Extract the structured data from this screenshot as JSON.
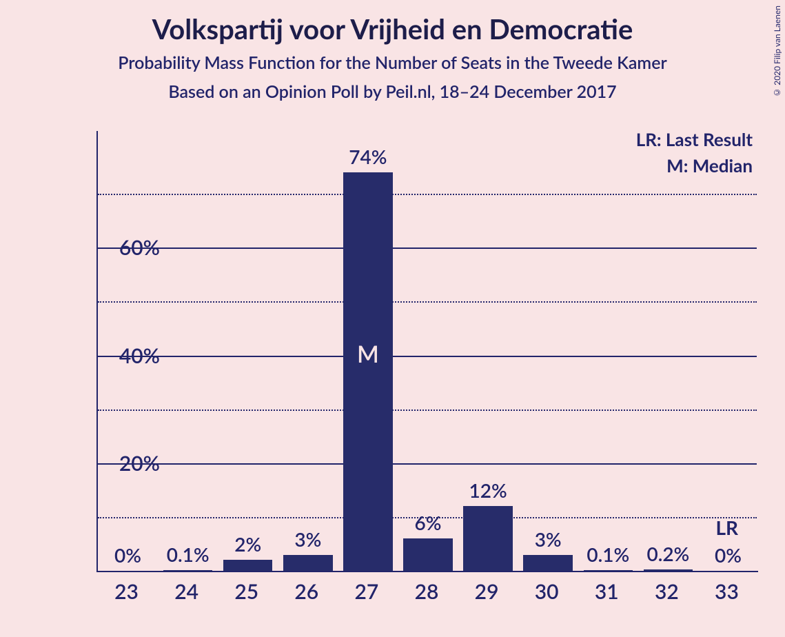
{
  "title": "Volkspartij voor Vrijheid en Democratie",
  "subtitle1": "Probability Mass Function for the Number of Seats in the Tweede Kamer",
  "subtitle2": "Based on an Opinion Poll by Peil.nl, 18–24 December 2017",
  "copyright": "© 2020 Filip van Laenen",
  "legend": {
    "lr": "LR: Last Result",
    "m": "M: Median"
  },
  "chart": {
    "type": "bar",
    "background_color": "#f9e4e5",
    "bar_color": "#272c6a",
    "text_color": "#22246a",
    "grid_major_color": "#22246a",
    "grid_minor_color": "#22246a",
    "ylim": [
      0,
      74
    ],
    "y_major_ticks": [
      20,
      40,
      60
    ],
    "y_minor_ticks": [
      10,
      30,
      50,
      70
    ],
    "y_tick_labels": [
      "20%",
      "40%",
      "60%"
    ],
    "title_fontsize": 40,
    "subtitle_fontsize": 25,
    "label_fontsize": 30,
    "value_fontsize": 28,
    "bar_width_ratio": 0.82,
    "categories": [
      "23",
      "24",
      "25",
      "26",
      "27",
      "28",
      "29",
      "30",
      "31",
      "32",
      "33"
    ],
    "values": [
      0,
      0.1,
      2,
      3,
      74,
      6,
      12,
      3,
      0.1,
      0.2,
      0
    ],
    "value_labels": [
      "0%",
      "0.1%",
      "2%",
      "3%",
      "74%",
      "6%",
      "12%",
      "3%",
      "0.1%",
      "0.2%",
      "0%"
    ],
    "median_index": 4,
    "median_label": "M",
    "lr_index": 10,
    "lr_label": "LR"
  }
}
